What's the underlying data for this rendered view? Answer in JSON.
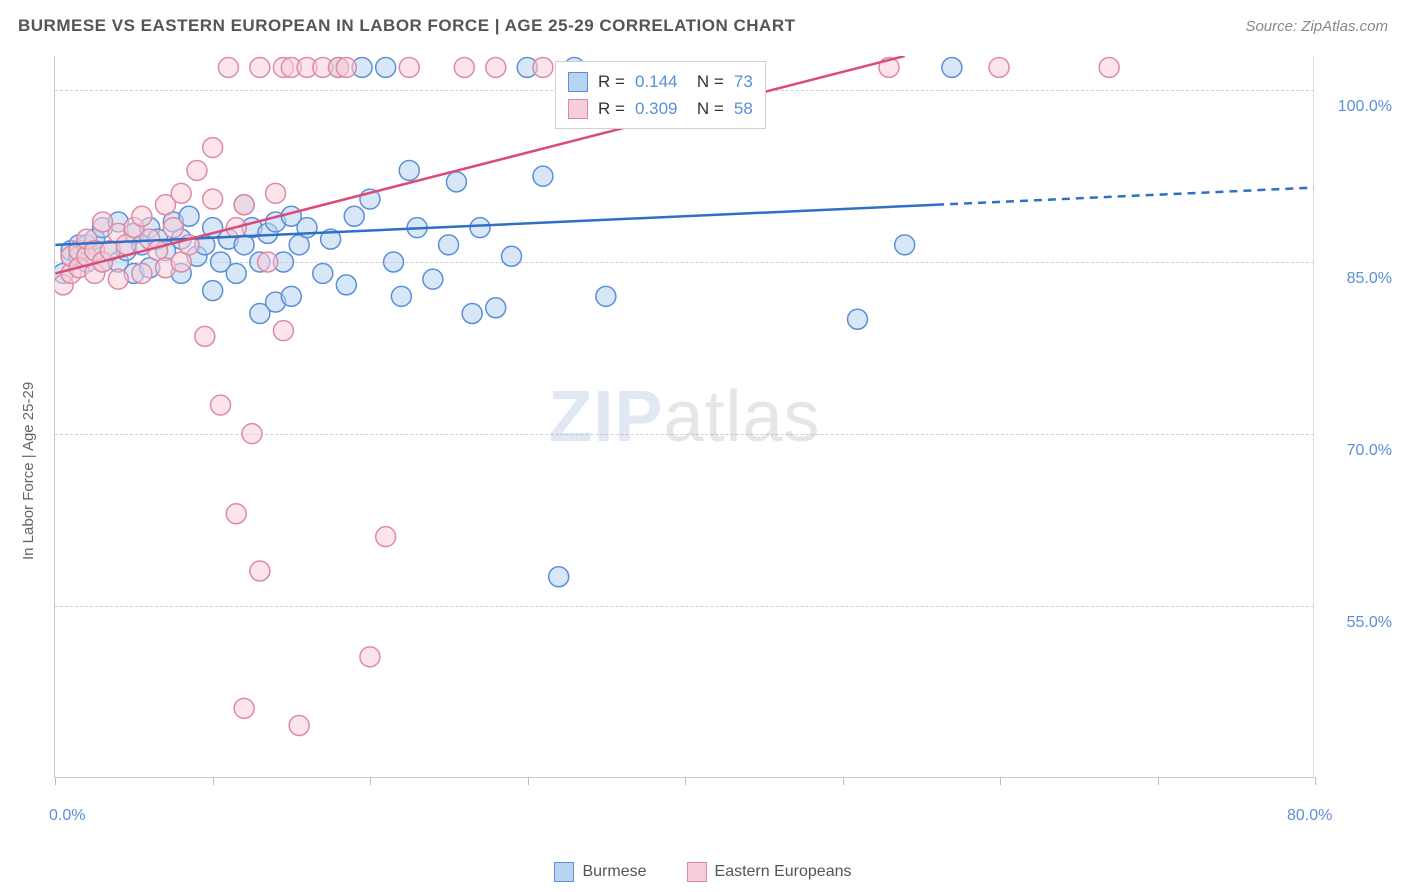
{
  "header": {
    "title": "BURMESE VS EASTERN EUROPEAN IN LABOR FORCE | AGE 25-29 CORRELATION CHART",
    "source": "Source: ZipAtlas.com"
  },
  "chart": {
    "type": "scatter",
    "y_axis_label": "In Labor Force | Age 25-29",
    "xlim": [
      0,
      80
    ],
    "ylim": [
      40,
      103
    ],
    "x_ticks": [
      0,
      10,
      20,
      30,
      40,
      50,
      60,
      70,
      80
    ],
    "x_tick_labels_shown": {
      "0": "0.0%",
      "80": "80.0%"
    },
    "y_grid": [
      55,
      70,
      85,
      100
    ],
    "y_grid_labels": {
      "55": "55.0%",
      "70": "70.0%",
      "85": "85.0%",
      "100": "100.0%"
    },
    "grid_color": "#d0d0d0",
    "background": "#ffffff",
    "tick_label_color": "#5b8fd6",
    "axis_label_color": "#666666",
    "marker_radius": 10,
    "marker_stroke_width": 1.5,
    "trend_line_width": 2.5,
    "series": [
      {
        "name": "Burmese",
        "fill": "#b8d4f0",
        "stroke": "#5b8fd6",
        "fill_opacity": 0.55,
        "R": "0.144",
        "N": "73",
        "trend": {
          "x1": 0,
          "y1": 86.5,
          "x2": 80,
          "y2": 91.5,
          "solid_until_x": 56,
          "color": "#2f6fc4"
        },
        "points": [
          [
            0.5,
            84
          ],
          [
            1,
            85.5
          ],
          [
            1,
            86
          ],
          [
            1.5,
            86.5
          ],
          [
            1.5,
            85.5
          ],
          [
            2,
            85
          ],
          [
            2,
            86.5
          ],
          [
            2.5,
            87
          ],
          [
            2.5,
            86
          ],
          [
            3,
            88
          ],
          [
            3,
            85
          ],
          [
            3.5,
            86
          ],
          [
            4,
            88.5
          ],
          [
            4,
            85
          ],
          [
            4.5,
            86
          ],
          [
            5,
            87.5
          ],
          [
            5,
            84
          ],
          [
            5.5,
            86.5
          ],
          [
            6,
            88
          ],
          [
            6,
            84.5
          ],
          [
            6.5,
            87
          ],
          [
            7,
            86
          ],
          [
            7.5,
            88.5
          ],
          [
            8,
            87
          ],
          [
            8,
            84
          ],
          [
            8.5,
            89
          ],
          [
            9,
            85.5
          ],
          [
            9.5,
            86.5
          ],
          [
            10,
            88
          ],
          [
            10,
            82.5
          ],
          [
            10.5,
            85
          ],
          [
            11,
            87
          ],
          [
            11.5,
            84
          ],
          [
            12,
            90
          ],
          [
            12,
            86.5
          ],
          [
            12.5,
            88
          ],
          [
            13,
            85
          ],
          [
            13,
            80.5
          ],
          [
            13.5,
            87.5
          ],
          [
            14,
            88.5
          ],
          [
            14,
            81.5
          ],
          [
            14.5,
            85
          ],
          [
            15,
            89
          ],
          [
            15,
            82
          ],
          [
            15.5,
            86.5
          ],
          [
            16,
            88
          ],
          [
            17,
            84
          ],
          [
            17.5,
            87
          ],
          [
            18,
            102
          ],
          [
            18.5,
            83
          ],
          [
            19,
            89
          ],
          [
            19.5,
            102
          ],
          [
            20,
            90.5
          ],
          [
            21,
            102
          ],
          [
            21.5,
            85
          ],
          [
            22,
            82
          ],
          [
            22.5,
            93
          ],
          [
            23,
            88
          ],
          [
            24,
            83.5
          ],
          [
            25,
            86.5
          ],
          [
            25.5,
            92
          ],
          [
            26.5,
            80.5
          ],
          [
            27,
            88
          ],
          [
            28,
            81
          ],
          [
            29,
            85.5
          ],
          [
            30,
            102
          ],
          [
            31,
            92.5
          ],
          [
            32,
            57.5
          ],
          [
            33,
            102
          ],
          [
            35,
            82
          ],
          [
            51,
            80
          ],
          [
            54,
            86.5
          ],
          [
            57,
            102
          ]
        ]
      },
      {
        "name": "Eastern Europeans",
        "fill": "#f7cdd9",
        "stroke": "#e089a4",
        "fill_opacity": 0.55,
        "R": "0.309",
        "N": "58",
        "trend": {
          "x1": 0,
          "y1": 84,
          "x2": 54,
          "y2": 103,
          "solid_until_x": 54,
          "color": "#d94c7a"
        },
        "points": [
          [
            0.5,
            83
          ],
          [
            1,
            84
          ],
          [
            1,
            85.5
          ],
          [
            1.5,
            86
          ],
          [
            1.5,
            84.5
          ],
          [
            2,
            85.5
          ],
          [
            2,
            87
          ],
          [
            2.5,
            86
          ],
          [
            2.5,
            84
          ],
          [
            3,
            88.5
          ],
          [
            3,
            85
          ],
          [
            3.5,
            86
          ],
          [
            4,
            87.5
          ],
          [
            4,
            83.5
          ],
          [
            4.5,
            86.5
          ],
          [
            5,
            88
          ],
          [
            5.5,
            89
          ],
          [
            5.5,
            84
          ],
          [
            6,
            87
          ],
          [
            6.5,
            86
          ],
          [
            7,
            90
          ],
          [
            7,
            84.5
          ],
          [
            7.5,
            88
          ],
          [
            8,
            91
          ],
          [
            8,
            85
          ],
          [
            8.5,
            86.5
          ],
          [
            9,
            93
          ],
          [
            9.5,
            78.5
          ],
          [
            10,
            95
          ],
          [
            10,
            90.5
          ],
          [
            10.5,
            72.5
          ],
          [
            11,
            102
          ],
          [
            11.5,
            88
          ],
          [
            11.5,
            63
          ],
          [
            12,
            90
          ],
          [
            12,
            46
          ],
          [
            12.5,
            70
          ],
          [
            13,
            58
          ],
          [
            13,
            102
          ],
          [
            13.5,
            85
          ],
          [
            14,
            91
          ],
          [
            14.5,
            102
          ],
          [
            14.5,
            79
          ],
          [
            15,
            102
          ],
          [
            15.5,
            44.5
          ],
          [
            16,
            102
          ],
          [
            17,
            102
          ],
          [
            18,
            102
          ],
          [
            18.5,
            102
          ],
          [
            20,
            50.5
          ],
          [
            21,
            61
          ],
          [
            22.5,
            102
          ],
          [
            26,
            102
          ],
          [
            28,
            102
          ],
          [
            31,
            102
          ],
          [
            53,
            102
          ],
          [
            60,
            102
          ],
          [
            67,
            102
          ]
        ]
      }
    ],
    "legend_bottom": [
      {
        "label": "Burmese",
        "fill": "#b8d4f0",
        "stroke": "#5b8fd6"
      },
      {
        "label": "Eastern Europeans",
        "fill": "#f7cdd9",
        "stroke": "#e089a4"
      }
    ]
  },
  "watermark": {
    "part1": "ZIP",
    "part2": "atlas"
  }
}
